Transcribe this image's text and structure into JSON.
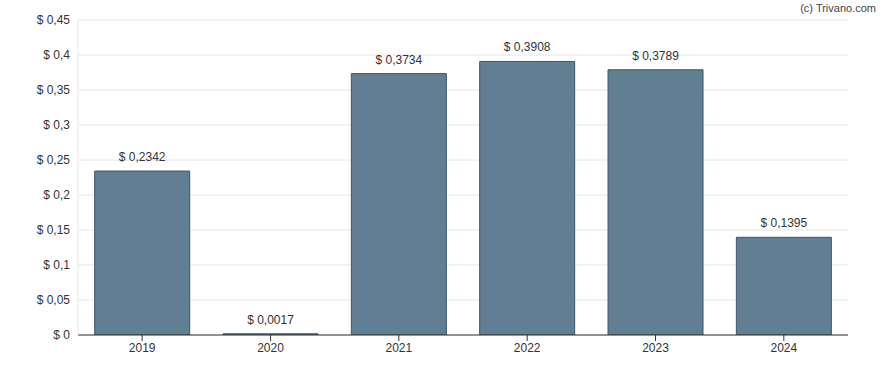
{
  "chart_data": {
    "type": "bar",
    "annotation": "(c) Trivano.com",
    "categories": [
      "2019",
      "2020",
      "2021",
      "2022",
      "2023",
      "2024"
    ],
    "values": [
      0.2342,
      0.0017,
      0.3734,
      0.3908,
      0.3789,
      0.1395
    ],
    "value_labels": [
      "$ 0,2342",
      "$ 0,0017",
      "$ 0,3734",
      "$ 0,3908",
      "$ 0,3789",
      "$ 0,1395"
    ],
    "data_labels": true,
    "color": "#617e93",
    "ylim": [
      0,
      0.45
    ],
    "yticks": [
      {
        "value": 0,
        "label": "$ 0"
      },
      {
        "value": 0.05,
        "label": "$ 0,05"
      },
      {
        "value": 0.1,
        "label": "$ 0,1"
      },
      {
        "value": 0.15,
        "label": "$ 0,15"
      },
      {
        "value": 0.2,
        "label": "$ 0,2"
      },
      {
        "value": 0.25,
        "label": "$ 0,25"
      },
      {
        "value": 0.3,
        "label": "$ 0,3"
      },
      {
        "value": 0.35,
        "label": "$ 0,35"
      },
      {
        "value": 0.4,
        "label": "$ 0,4"
      },
      {
        "value": 0.45,
        "label": "$ 0,45"
      }
    ],
    "grid": true
  }
}
